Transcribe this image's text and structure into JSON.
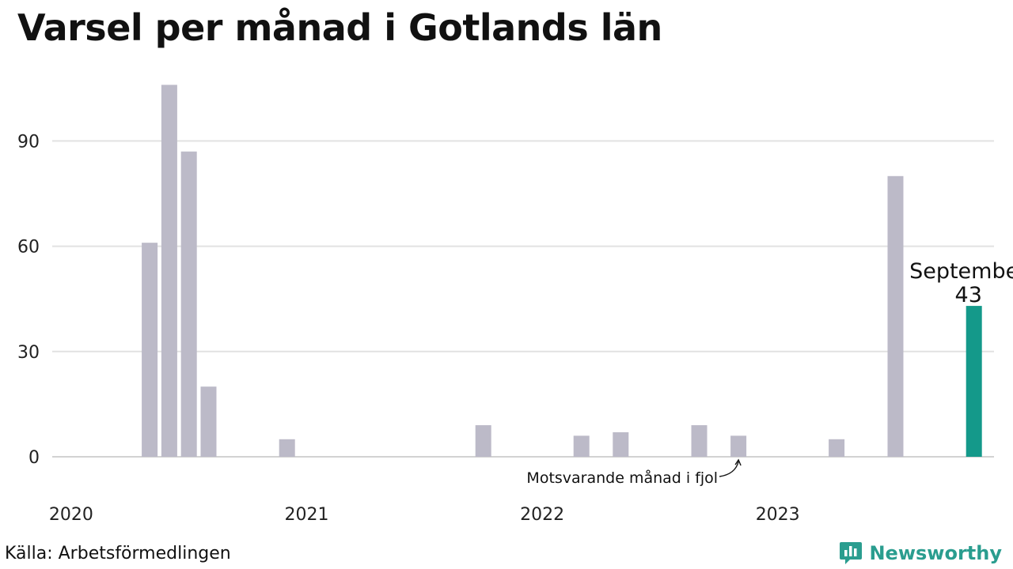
{
  "chart_data": {
    "type": "bar",
    "title": "Varsel per månad i Gotlands län",
    "xlabel": "",
    "ylabel": "",
    "ylim": [
      0,
      108
    ],
    "y_ticks": [
      0,
      30,
      60,
      90
    ],
    "x_tick_labels": [
      "2020",
      "2021",
      "2022",
      "2023"
    ],
    "grid": true,
    "colors": {
      "bar": "#bcbac8",
      "highlight": "#14998a",
      "grid": "#e2e2e2"
    },
    "months": [
      "2020-01",
      "2020-02",
      "2020-03",
      "2020-04",
      "2020-05",
      "2020-06",
      "2020-07",
      "2020-08",
      "2020-09",
      "2020-10",
      "2020-11",
      "2020-12",
      "2021-01",
      "2021-02",
      "2021-03",
      "2021-04",
      "2021-05",
      "2021-06",
      "2021-07",
      "2021-08",
      "2021-09",
      "2021-10",
      "2021-11",
      "2021-12",
      "2022-01",
      "2022-02",
      "2022-03",
      "2022-04",
      "2022-05",
      "2022-06",
      "2022-07",
      "2022-08",
      "2022-09",
      "2022-10",
      "2022-11",
      "2022-12",
      "2023-01",
      "2023-02",
      "2023-03",
      "2023-04",
      "2023-05",
      "2023-06",
      "2023-07",
      "2023-08",
      "2023-09"
    ],
    "values": [
      0,
      0,
      61,
      106,
      87,
      20,
      0,
      0,
      0,
      5,
      0,
      0,
      0,
      0,
      0,
      0,
      0,
      0,
      0,
      9,
      0,
      0,
      0,
      0,
      6,
      0,
      7,
      0,
      0,
      0,
      9,
      0,
      6,
      0,
      0,
      0,
      0,
      5,
      0,
      0,
      80,
      0,
      0,
      0,
      43
    ],
    "highlight": {
      "month": "2023-09",
      "label": "September",
      "value_label": "43"
    },
    "annotation": {
      "text": "Motsvarande månad i fjol",
      "month": "2022-09"
    }
  },
  "footer": {
    "source": "Källa: Arbetsförmedlingen",
    "brand": "Newsworthy",
    "brand_icon": "newsworthy-logo-icon"
  }
}
